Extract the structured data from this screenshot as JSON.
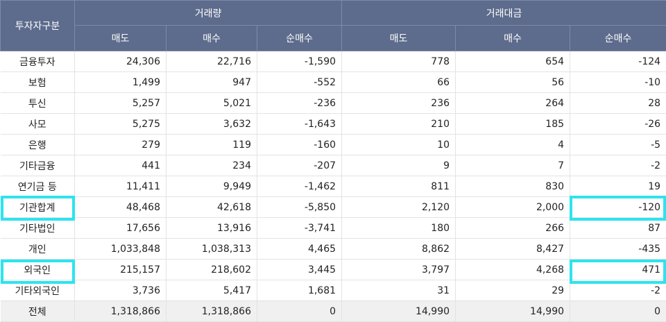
{
  "header": {
    "investor_type": "투자자구분",
    "volume_group": "거래량",
    "value_group": "거래대금",
    "sell": "매도",
    "buy": "매수",
    "net_buy": "순매수"
  },
  "rows": [
    {
      "name": "금융투자",
      "vol_sell": "24,306",
      "vol_buy": "22,716",
      "vol_net": "-1,590",
      "val_sell": "778",
      "val_buy": "654",
      "val_net": "-124"
    },
    {
      "name": "보험",
      "vol_sell": "1,499",
      "vol_buy": "947",
      "vol_net": "-552",
      "val_sell": "66",
      "val_buy": "56",
      "val_net": "-10"
    },
    {
      "name": "투신",
      "vol_sell": "5,257",
      "vol_buy": "5,021",
      "vol_net": "-236",
      "val_sell": "236",
      "val_buy": "264",
      "val_net": "28"
    },
    {
      "name": "사모",
      "vol_sell": "5,275",
      "vol_buy": "3,632",
      "vol_net": "-1,643",
      "val_sell": "210",
      "val_buy": "185",
      "val_net": "-26"
    },
    {
      "name": "은행",
      "vol_sell": "279",
      "vol_buy": "119",
      "vol_net": "-160",
      "val_sell": "10",
      "val_buy": "4",
      "val_net": "-5"
    },
    {
      "name": "기타금융",
      "vol_sell": "441",
      "vol_buy": "234",
      "vol_net": "-207",
      "val_sell": "9",
      "val_buy": "7",
      "val_net": "-2"
    },
    {
      "name": "연기금 등",
      "vol_sell": "11,411",
      "vol_buy": "9,949",
      "vol_net": "-1,462",
      "val_sell": "811",
      "val_buy": "830",
      "val_net": "19"
    },
    {
      "name": "기관합계",
      "vol_sell": "48,468",
      "vol_buy": "42,618",
      "vol_net": "-5,850",
      "val_sell": "2,120",
      "val_buy": "2,000",
      "val_net": "-120"
    },
    {
      "name": "기타법인",
      "vol_sell": "17,656",
      "vol_buy": "13,916",
      "vol_net": "-3,741",
      "val_sell": "180",
      "val_buy": "266",
      "val_net": "87"
    },
    {
      "name": "개인",
      "vol_sell": "1,033,848",
      "vol_buy": "1,038,313",
      "vol_net": "4,465",
      "val_sell": "8,862",
      "val_buy": "8,427",
      "val_net": "-435"
    },
    {
      "name": "외국인",
      "vol_sell": "215,157",
      "vol_buy": "218,602",
      "vol_net": "3,445",
      "val_sell": "3,797",
      "val_buy": "4,268",
      "val_net": "471"
    },
    {
      "name": "기타외국인",
      "vol_sell": "3,736",
      "vol_buy": "5,417",
      "vol_net": "1,681",
      "val_sell": "31",
      "val_buy": "29",
      "val_net": "-2"
    },
    {
      "name": "전체",
      "vol_sell": "1,318,866",
      "vol_buy": "1,318,866",
      "vol_net": "0",
      "val_sell": "14,990",
      "val_buy": "14,990",
      "val_net": "0"
    }
  ],
  "colors": {
    "header_bg": "#5d6b8c",
    "highlight": "#2de3f0",
    "total_row_bg": "#f0f0f0"
  }
}
